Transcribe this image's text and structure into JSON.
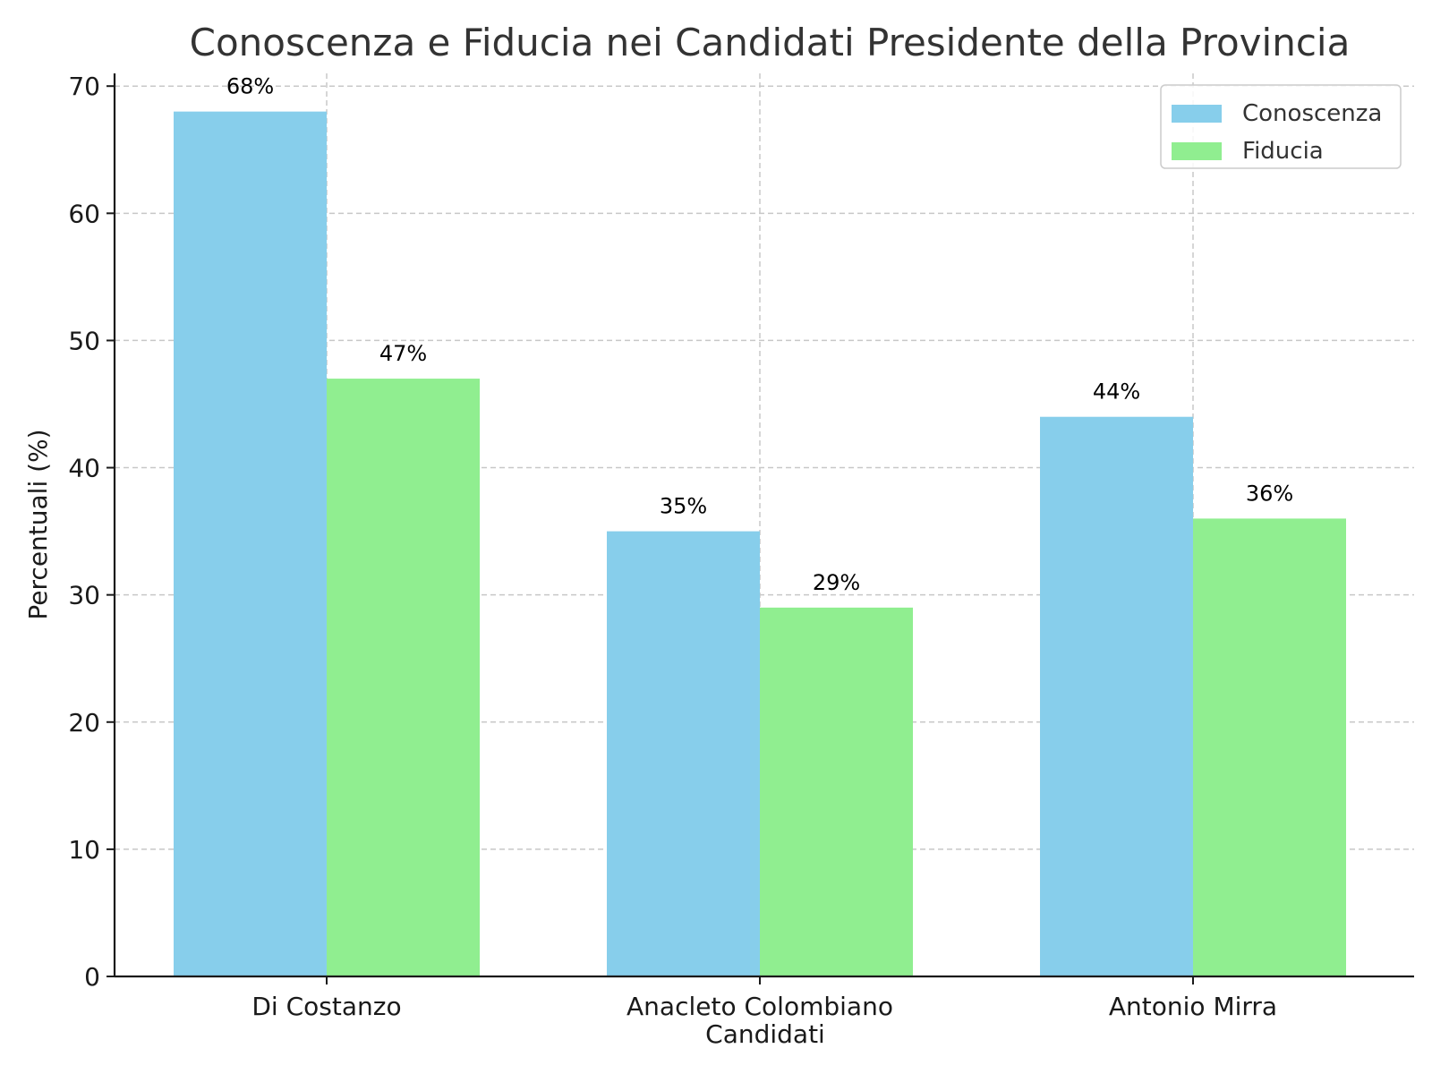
{
  "chart_data": {
    "type": "bar",
    "title": "Conoscenza e Fiducia nei Candidati Presidente della Provincia",
    "xlabel": "Candidati",
    "ylabel": "Percentuali (%)",
    "categories": [
      "Di Costanzo",
      "Anacleto Colombiano",
      "Antonio Mirra"
    ],
    "series": [
      {
        "name": "Conoscenza",
        "color": "#87CEEB",
        "values": [
          68,
          35,
          44
        ],
        "labels": [
          "68%",
          "35%",
          "44%"
        ]
      },
      {
        "name": "Fiducia",
        "color": "#90EE90",
        "values": [
          47,
          29,
          36
        ],
        "labels": [
          "47%",
          "29%",
          "36%"
        ]
      }
    ],
    "ylim": [
      0,
      71
    ],
    "yticks": [
      "0",
      "10",
      "20",
      "30",
      "40",
      "50",
      "60",
      "70"
    ],
    "grid": true,
    "legend_position": "top-right"
  }
}
